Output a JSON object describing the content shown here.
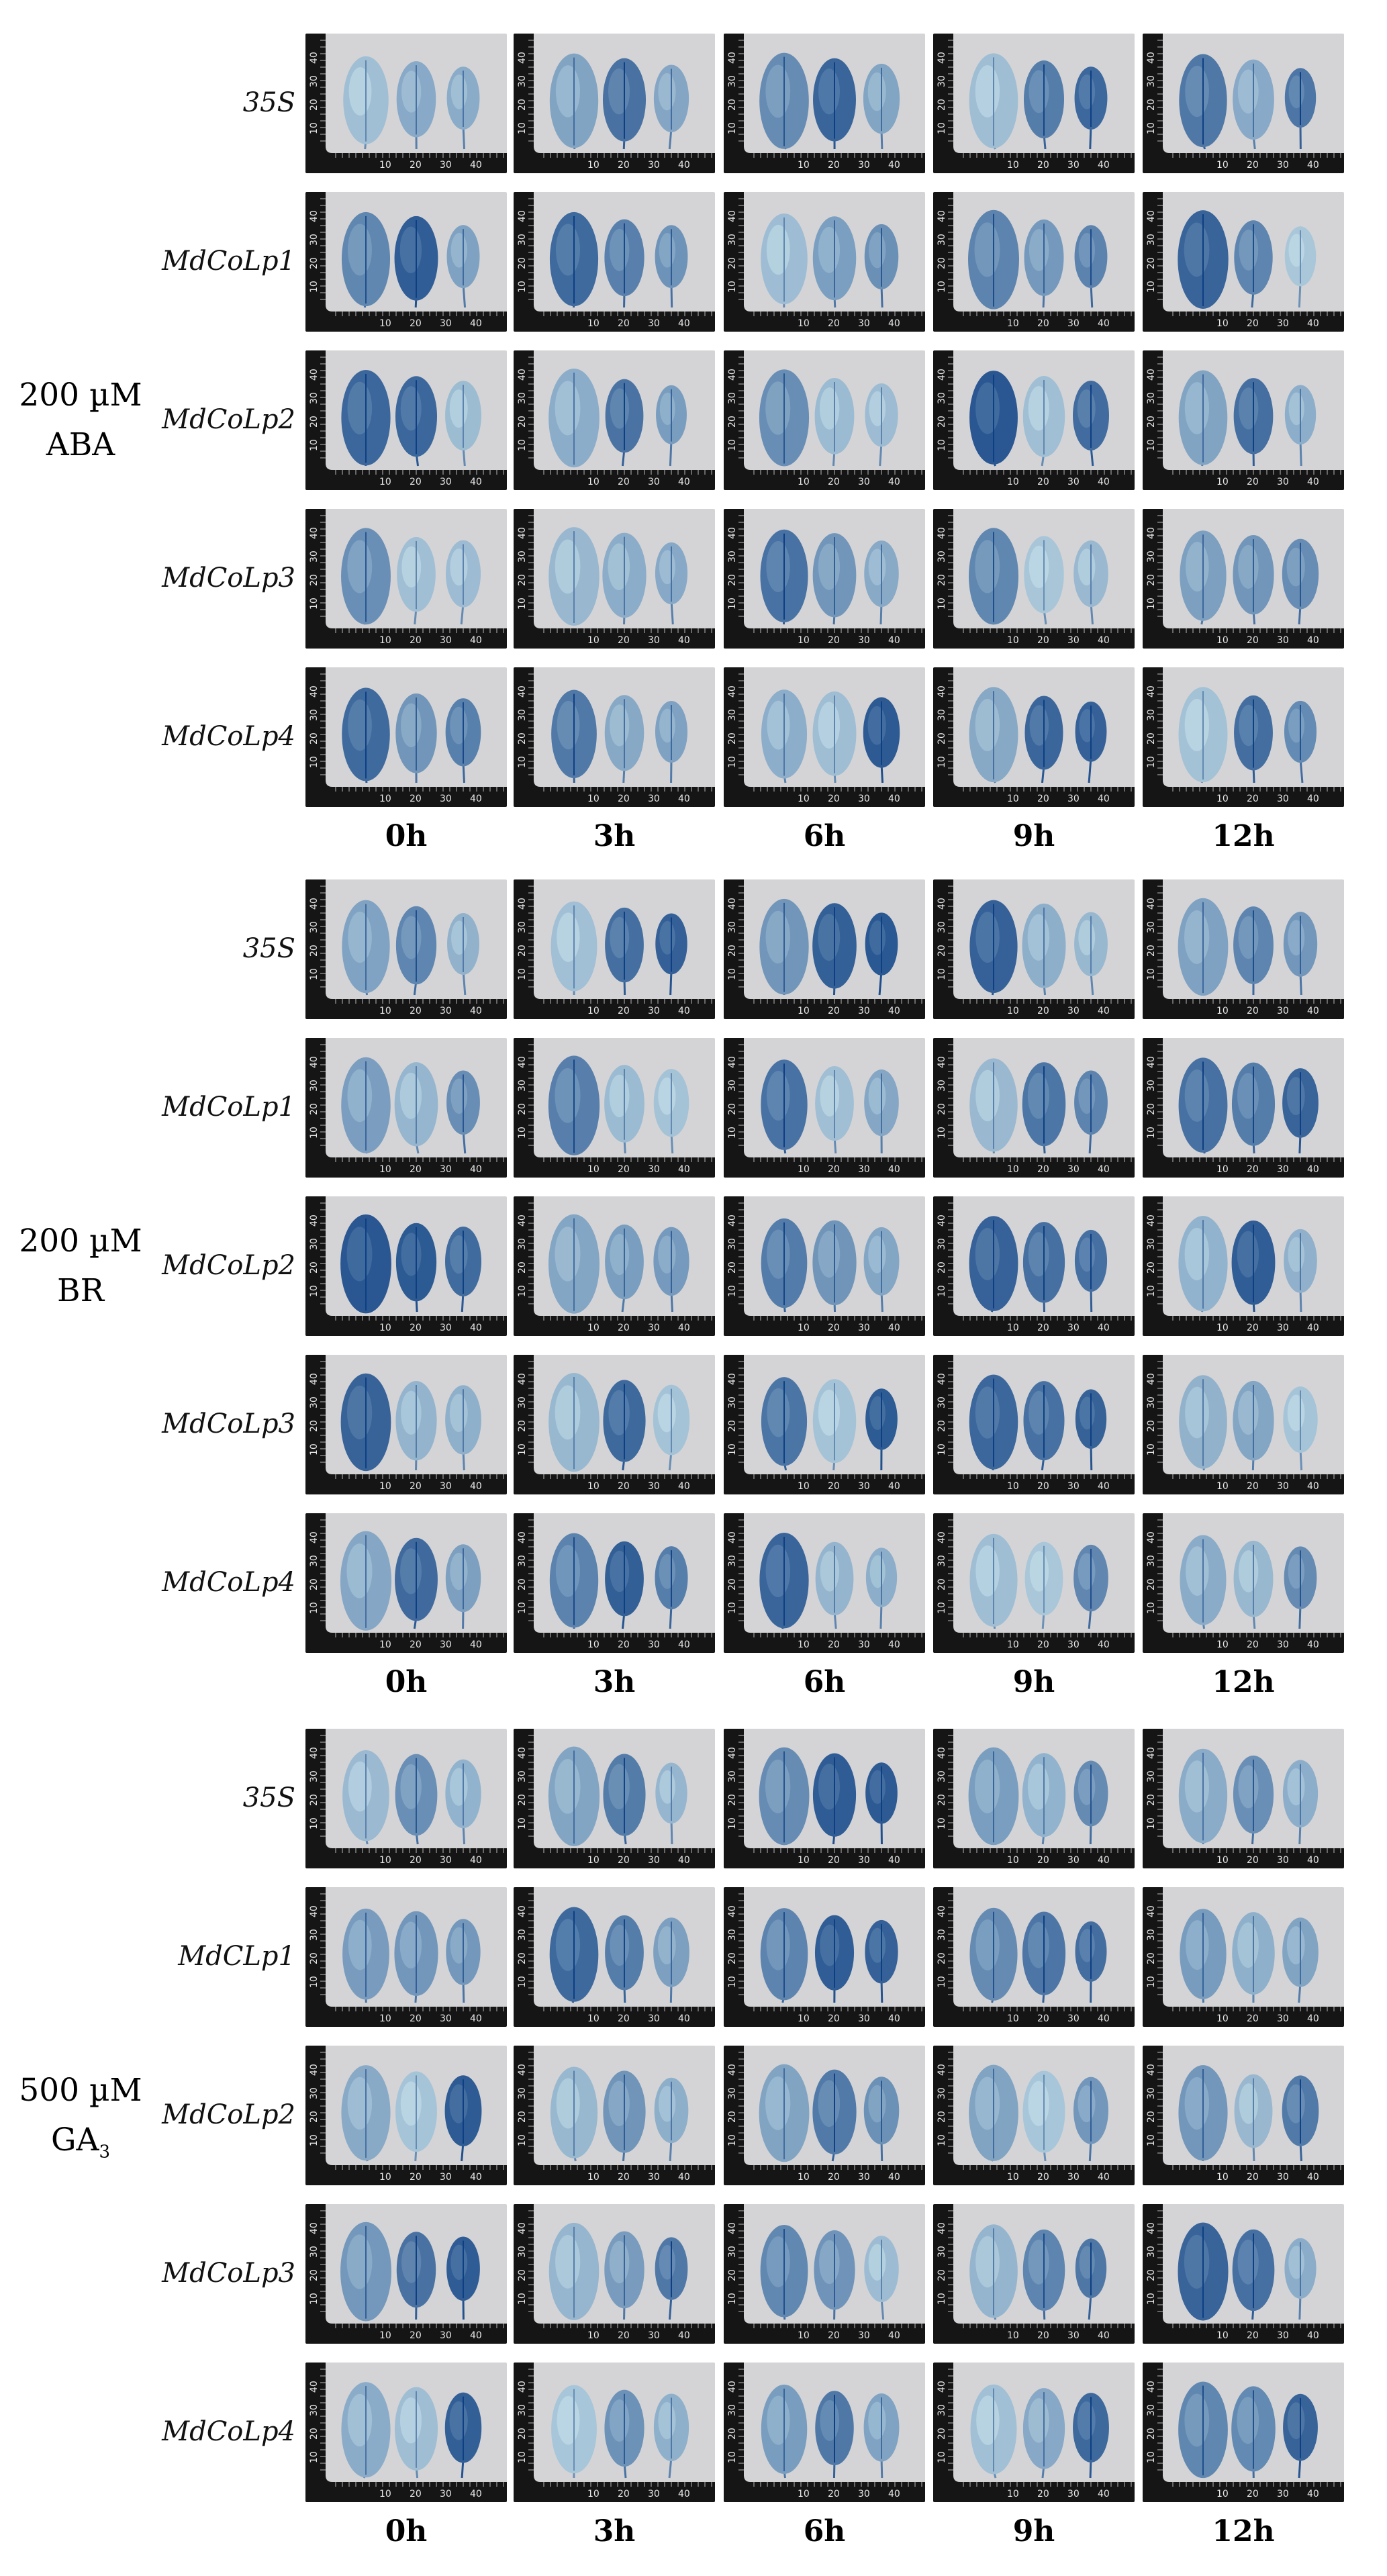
{
  "treatments": [
    {
      "line1": "200 µM",
      "line2": "ABA",
      "sub": "",
      "rows": [
        "35S",
        "MdCoLp1",
        "MdCoLp2",
        "MdCoLp3",
        "MdCoLp4"
      ]
    },
    {
      "line1": "200 µM",
      "line2": "BR",
      "sub": "",
      "rows": [
        "35S",
        "MdCoLp1",
        "MdCoLp2",
        "MdCoLp3",
        "MdCoLp4"
      ]
    },
    {
      "line1": "500 µM",
      "line2": "GA",
      "sub": "3",
      "rows": [
        "35S",
        "MdCLp1",
        "MdCoLp2",
        "MdCoLp3",
        "MdCoLp4"
      ]
    }
  ],
  "time_points": [
    "0h",
    "3h",
    "6h",
    "9h",
    "12h"
  ],
  "colors": {
    "background": "#d4d4d6",
    "ruler": "#151515",
    "stain_dark": "#0e3f82",
    "stain_light": "#c6e0ea"
  },
  "ruler_ticks": [
    "10",
    "20",
    "30",
    "40"
  ],
  "ruler_ticks_x": [
    "10",
    "20",
    "30",
    "40"
  ],
  "leaf_icon": "stained-leaf"
}
